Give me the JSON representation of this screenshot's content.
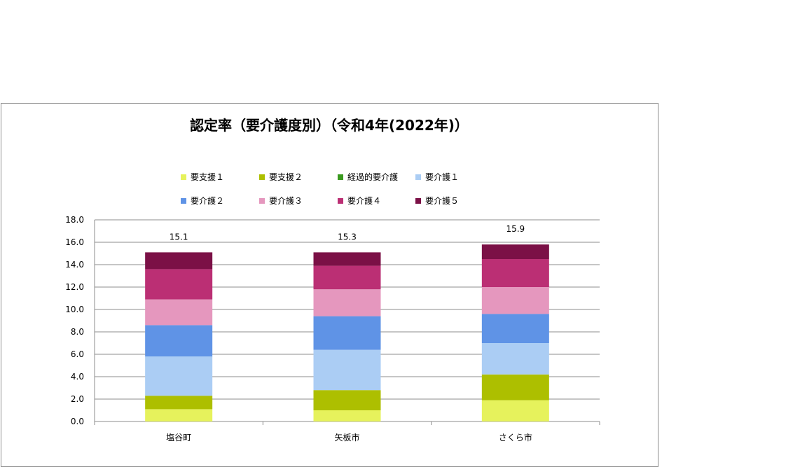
{
  "chart_data": {
    "type": "bar",
    "stacked": true,
    "title": "認定率（要介護度別）（令和4年(2022年)）",
    "categories": [
      "塩谷町",
      "矢板市",
      "さくら市"
    ],
    "series": [
      {
        "name": "要支援１",
        "color": "#e6f25c",
        "values": [
          1.1,
          1.0,
          1.9
        ]
      },
      {
        "name": "要支援２",
        "color": "#adbf00",
        "values": [
          1.2,
          1.8,
          2.3
        ]
      },
      {
        "name": "経過的要介護",
        "color": "#3a9a1f",
        "values": [
          0.0,
          0.0,
          0.0
        ]
      },
      {
        "name": "要介護１",
        "color": "#abcdf4",
        "values": [
          3.5,
          3.6,
          2.8
        ]
      },
      {
        "name": "要介護２",
        "color": "#5f93e6",
        "values": [
          2.8,
          3.0,
          2.6
        ]
      },
      {
        "name": "要介護３",
        "color": "#e597be",
        "values": [
          2.3,
          2.4,
          2.4
        ]
      },
      {
        "name": "要介護４",
        "color": "#bb2f74",
        "values": [
          2.7,
          2.1,
          2.5
        ]
      },
      {
        "name": "要介護５",
        "color": "#7b1046",
        "values": [
          1.5,
          1.2,
          1.3
        ]
      }
    ],
    "totals": [
      "15.1",
      "15.3",
      "15.9"
    ],
    "ylim": [
      0,
      18
    ],
    "yticks": [
      "0.0",
      "2.0",
      "4.0",
      "6.0",
      "8.0",
      "10.0",
      "12.0",
      "14.0",
      "16.0",
      "18.0"
    ],
    "grid": true,
    "legend_position": "top"
  }
}
